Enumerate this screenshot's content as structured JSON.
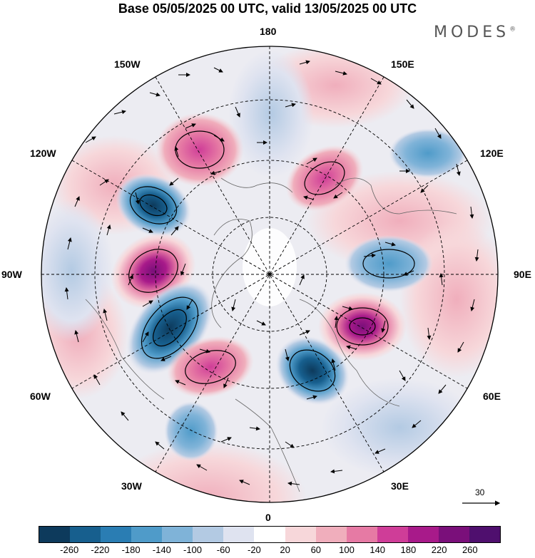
{
  "title": "Base 05/05/2025 00 UTC, valid 13/05/2025 00 UTC",
  "brand": "MODES",
  "brand_mark": "®",
  "longitude_labels": {
    "top": "180",
    "top_left": "150W",
    "top_right": "150E",
    "upper_left": "120W",
    "upper_right": "120E",
    "left": "90W",
    "right": "90E",
    "lower_left": "60W",
    "lower_right": "60E",
    "bottom_left": "30W",
    "bottom_right": "30E",
    "bottom": "0"
  },
  "vector_reference": {
    "label": "30",
    "icon": "arrow-right-icon"
  },
  "colorbar": {
    "tick_labels": [
      "-260",
      "-220",
      "-180",
      "-140",
      "-100",
      "-60",
      "-20",
      "20",
      "60",
      "100",
      "140",
      "180",
      "220",
      "260"
    ],
    "colors": [
      "#0d3a5c",
      "#175f8e",
      "#2a7db3",
      "#4f9bc9",
      "#7fb3d8",
      "#b3cae3",
      "#dfe3f0",
      "#ffffff",
      "#f7d7da",
      "#f0aebc",
      "#e67aa4",
      "#cf3d98",
      "#a81a8a",
      "#7a0f7a",
      "#4f0f6e"
    ]
  },
  "map": {
    "projection": "north-polar-stereographic",
    "field": "geopotential height anomaly",
    "anomaly_centres": [
      {
        "sign": "negative",
        "colour": "#15466d",
        "sector": "120W"
      },
      {
        "sign": "positive",
        "colour": "#a81a8a",
        "sector": "90W"
      },
      {
        "sign": "negative",
        "colour": "#0d3a5c",
        "sector": "70W"
      },
      {
        "sign": "positive",
        "colour": "#cf3d98",
        "sector": "40W"
      },
      {
        "sign": "negative",
        "colour": "#175f8e",
        "sector": "25E"
      },
      {
        "sign": "positive",
        "colour": "#a81a8a",
        "sector": "60E"
      },
      {
        "sign": "negative",
        "colour": "#4f9bc9",
        "sector": "90E"
      },
      {
        "sign": "positive",
        "colour": "#cf3d98",
        "sector": "150W"
      },
      {
        "sign": "positive",
        "colour": "#e67aa4",
        "sector": "150E"
      },
      {
        "sign": "negative",
        "colour": "#7fb3d8",
        "sector": "130E"
      },
      {
        "sign": "negative",
        "colour": "#7fb3d8",
        "sector": "20W"
      }
    ]
  }
}
